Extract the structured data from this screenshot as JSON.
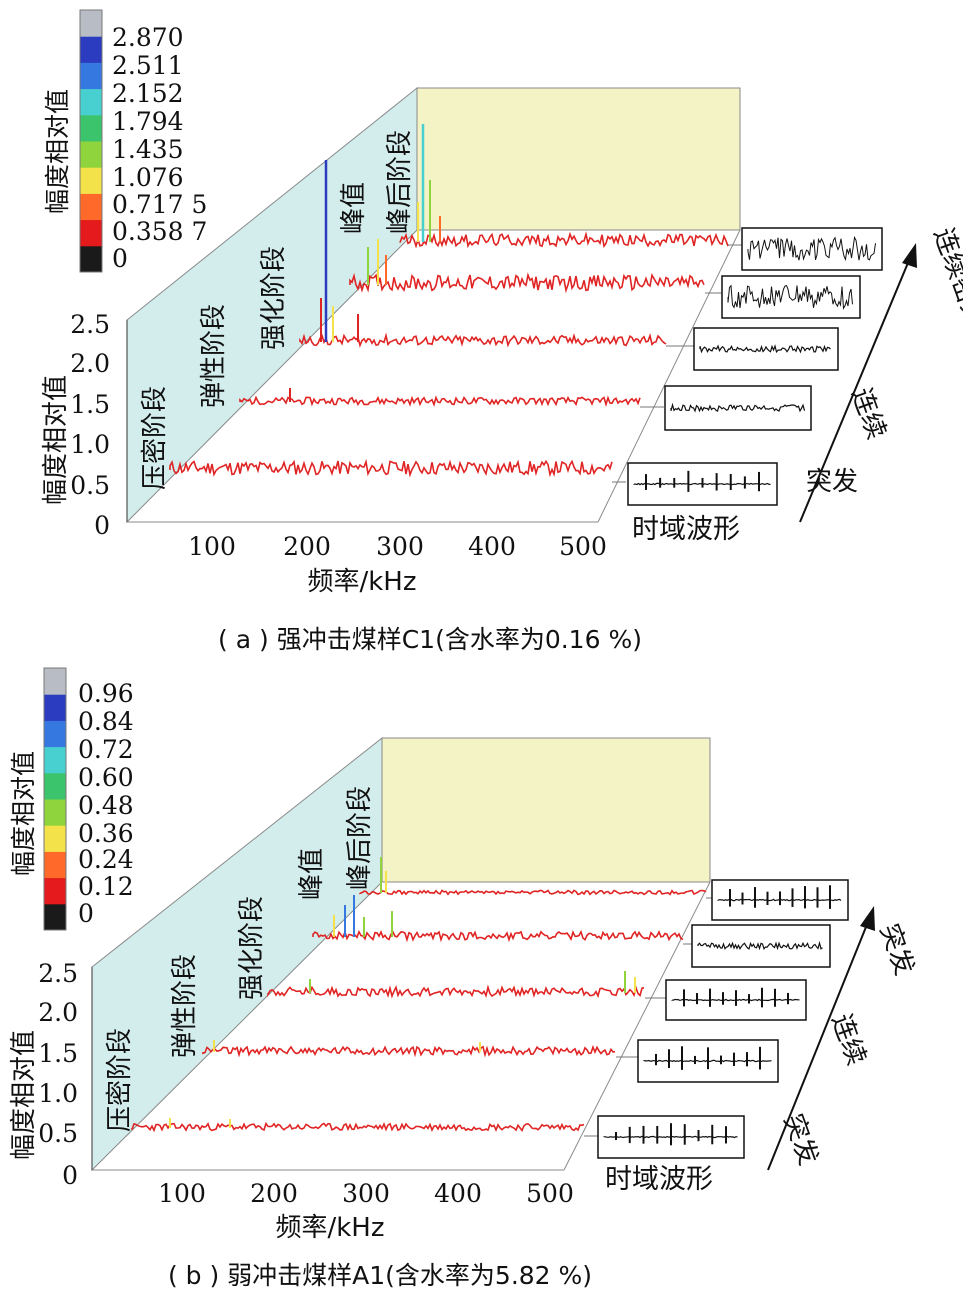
{
  "charts": [
    {
      "id": "a",
      "caption": "( a ) 强冲击煤样C1(含水率为0.16 %)",
      "colorbar": {
        "label": "幅度相对值",
        "ticks": [
          "2.870",
          "2.511",
          "2.152",
          "1.794",
          "1.435",
          "1.076",
          "0.717 5",
          "0.358 7",
          "0"
        ]
      },
      "y_axis": {
        "label": "幅度相对值",
        "ticks": [
          "2.5",
          "2.0",
          "1.5",
          "1.0",
          "0.5",
          "0"
        ]
      },
      "x_axis": {
        "label": "频率/kHz",
        "ticks": [
          "100",
          "200",
          "300",
          "400",
          "500"
        ]
      },
      "stages": [
        "压密阶段",
        "弹性阶段",
        "强化阶段",
        "峰值",
        "峰后阶段"
      ],
      "waveform_label": "时域波形",
      "arrow_labels": [
        {
          "text": "突发",
          "name": "arrow-label-burst"
        },
        {
          "text": "连续",
          "name": "arrow-label-continuous"
        },
        {
          "text": "连续密集",
          "name": "arrow-label-dense"
        }
      ]
    },
    {
      "id": "b",
      "caption": "( b ) 弱冲击煤样A1(含水率为5.82 %)",
      "colorbar": {
        "label": "幅度相对值",
        "ticks": [
          "0.96",
          "0.84",
          "0.72",
          "0.60",
          "0.48",
          "0.36",
          "0.24",
          "0.12",
          "0"
        ]
      },
      "y_axis": {
        "label": "幅度相对值",
        "ticks": [
          "2.5",
          "2.0",
          "1.5",
          "1.0",
          "0.5",
          "0"
        ]
      },
      "x_axis": {
        "label": "频率/kHz",
        "ticks": [
          "100",
          "200",
          "300",
          "400",
          "500"
        ]
      },
      "stages": [
        "压密阶段",
        "弹性阶段",
        "强化阶段",
        "峰值",
        "峰后阶段"
      ],
      "waveform_label": "时域波形",
      "arrow_labels": [
        {
          "text": "突发",
          "name": "arrow-label-burst-1"
        },
        {
          "text": "连续",
          "name": "arrow-label-continuous"
        },
        {
          "text": "突发",
          "name": "arrow-label-burst-2"
        }
      ]
    }
  ],
  "chart_data": [
    {
      "type": "3d-line-spectrum",
      "title": "( a ) 强冲击煤样C1(含水率为0.16 %)",
      "xlabel": "频率/kHz",
      "ylabel": "幅度相对值",
      "xlim": [
        0,
        500
      ],
      "ylim": [
        0,
        2.5
      ],
      "color_scale": [
        0,
        2.87
      ],
      "series": [
        {
          "name": "压密阶段",
          "baseline": 0.5,
          "peak": 0.7,
          "waveform": "突发"
        },
        {
          "name": "弹性阶段",
          "baseline": 0.4,
          "peak": 0.6,
          "waveform": "突发"
        },
        {
          "name": "强化阶段",
          "baseline": 0.4,
          "peak": 2.1,
          "waveform": "连续"
        },
        {
          "name": "峰值",
          "baseline": 0.4,
          "peak": 1.2,
          "waveform": "连续密集"
        },
        {
          "name": "峰后阶段",
          "baseline": 0.4,
          "peak": 1.5,
          "waveform": "连续密集"
        }
      ]
    },
    {
      "type": "3d-line-spectrum",
      "title": "( b ) 弱冲击煤样A1(含水率为5.82 %)",
      "xlabel": "频率/kHz",
      "ylabel": "幅度相对值",
      "xlim": [
        0,
        500
      ],
      "ylim": [
        0,
        2.5
      ],
      "color_scale": [
        0,
        0.96
      ],
      "series": [
        {
          "name": "压密阶段",
          "baseline": 0.15,
          "peak": 0.35,
          "waveform": "突发"
        },
        {
          "name": "弹性阶段",
          "baseline": 0.15,
          "peak": 0.35,
          "waveform": "突发"
        },
        {
          "name": "强化阶段",
          "baseline": 0.15,
          "peak": 0.45,
          "waveform": "连续"
        },
        {
          "name": "峰值",
          "baseline": 0.15,
          "peak": 0.6,
          "waveform": "连续"
        },
        {
          "name": "峰后阶段",
          "baseline": 0.15,
          "peak": 0.6,
          "waveform": "突发"
        }
      ]
    }
  ],
  "colors": {
    "wall": "#d3ecec",
    "back_wall": "#f3f3c6",
    "line_main": "#e02424",
    "palette": [
      "#1a1a1a",
      "#e41a1c",
      "#ff6a2a",
      "#f4e24a",
      "#8fd43c",
      "#3cc46c",
      "#48d0d0",
      "#3478e0",
      "#2c3cc0",
      "#b8bcc4"
    ]
  }
}
